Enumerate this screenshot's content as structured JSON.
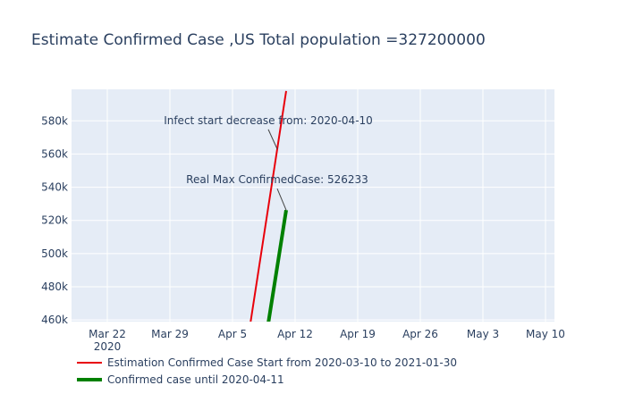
{
  "chart_data": {
    "type": "line",
    "title": "Estimate Confirmed Case ,US Total population =327200000",
    "xlabel": "",
    "ylabel": "",
    "xlim": [
      "2020-03-18",
      "2020-05-11"
    ],
    "ylim": [
      459000,
      599000
    ],
    "x_ticks": [
      {
        "date": "2020-03-22",
        "label": "Mar 22",
        "sublabel": "2020"
      },
      {
        "date": "2020-03-29",
        "label": "Mar 29",
        "sublabel": ""
      },
      {
        "date": "2020-04-05",
        "label": "Apr 5",
        "sublabel": ""
      },
      {
        "date": "2020-04-12",
        "label": "Apr 12",
        "sublabel": ""
      },
      {
        "date": "2020-04-19",
        "label": "Apr 19",
        "sublabel": ""
      },
      {
        "date": "2020-04-26",
        "label": "Apr 26",
        "sublabel": ""
      },
      {
        "date": "2020-05-03",
        "label": "May 3",
        "sublabel": ""
      },
      {
        "date": "2020-05-10",
        "label": "May 10",
        "sublabel": ""
      }
    ],
    "y_ticks": [
      {
        "value": 460000,
        "label": "460k"
      },
      {
        "value": 480000,
        "label": "480k"
      },
      {
        "value": 500000,
        "label": "500k"
      },
      {
        "value": 520000,
        "label": "520k"
      },
      {
        "value": 540000,
        "label": "540k"
      },
      {
        "value": 560000,
        "label": "560k"
      },
      {
        "value": 580000,
        "label": "580k"
      }
    ],
    "grid": true,
    "legend_position": "bottom-left",
    "series": [
      {
        "name": "Estimation Confirmed Case Start from 2020-03-10 to 2021-01-30",
        "color": "#e8000b",
        "style": "thin",
        "x": [
          "2020-04-07",
          "2020-04-08",
          "2020-04-09",
          "2020-04-10",
          "2020-04-11"
        ],
        "y": [
          458000,
          493000,
          528000,
          563000,
          598000
        ]
      },
      {
        "name": "Confirmed case until 2020-04-11",
        "color": "#008000",
        "style": "thick",
        "x": [
          "2020-04-09",
          "2020-04-10",
          "2020-04-11"
        ],
        "y": [
          458000,
          492000,
          526233
        ]
      }
    ],
    "annotations": [
      {
        "text": "Infect start decrease from: 2020-04-10",
        "x": "2020-04-10",
        "y": 563000
      },
      {
        "text": "Real Max ConfirmedCase: 526233",
        "x": "2020-04-11",
        "y": 526233
      }
    ]
  }
}
